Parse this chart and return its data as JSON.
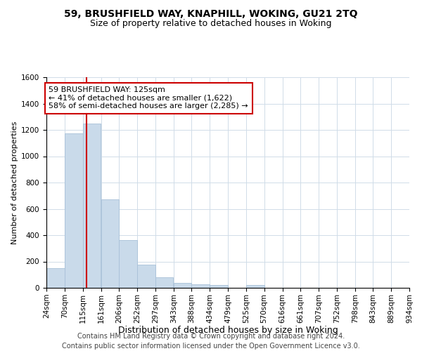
{
  "title1": "59, BRUSHFIELD WAY, KNAPHILL, WOKING, GU21 2TQ",
  "title2": "Size of property relative to detached houses in Woking",
  "xlabel": "Distribution of detached houses by size in Woking",
  "ylabel": "Number of detached properties",
  "footer1": "Contains HM Land Registry data © Crown copyright and database right 2024.",
  "footer2": "Contains public sector information licensed under the Open Government Licence v3.0.",
  "annotation_line1": "59 BRUSHFIELD WAY: 125sqm",
  "annotation_line2": "← 41% of detached houses are smaller (1,622)",
  "annotation_line3": "58% of semi-detached houses are larger (2,285) →",
  "property_size": 125,
  "bar_color": "#c9daea",
  "bar_edge_color": "#a8c0d8",
  "vline_color": "#cc0000",
  "annotation_box_edge": "#cc0000",
  "grid_color": "#d0dce8",
  "bar_left_edges": [
    24,
    70,
    115,
    161,
    206,
    252,
    297,
    343,
    388,
    434,
    479,
    525,
    570,
    616,
    661,
    707,
    752,
    798,
    843,
    889
  ],
  "bar_heights": [
    150,
    1175,
    1250,
    670,
    365,
    175,
    80,
    35,
    25,
    20,
    0,
    20,
    0,
    0,
    0,
    0,
    0,
    0,
    0,
    0
  ],
  "bin_width": 45,
  "ylim": [
    0,
    1600
  ],
  "xlim": [
    24,
    934
  ],
  "yticks": [
    0,
    200,
    400,
    600,
    800,
    1000,
    1200,
    1400,
    1600
  ],
  "xtick_labels": [
    "24sqm",
    "70sqm",
    "115sqm",
    "161sqm",
    "206sqm",
    "252sqm",
    "297sqm",
    "343sqm",
    "388sqm",
    "434sqm",
    "479sqm",
    "525sqm",
    "570sqm",
    "616sqm",
    "661sqm",
    "707sqm",
    "752sqm",
    "798sqm",
    "843sqm",
    "889sqm",
    "934sqm"
  ],
  "title1_fontsize": 10,
  "title2_fontsize": 9,
  "xlabel_fontsize": 9,
  "ylabel_fontsize": 8,
  "tick_fontsize": 7.5,
  "annotation_fontsize": 8,
  "footer_fontsize": 7
}
